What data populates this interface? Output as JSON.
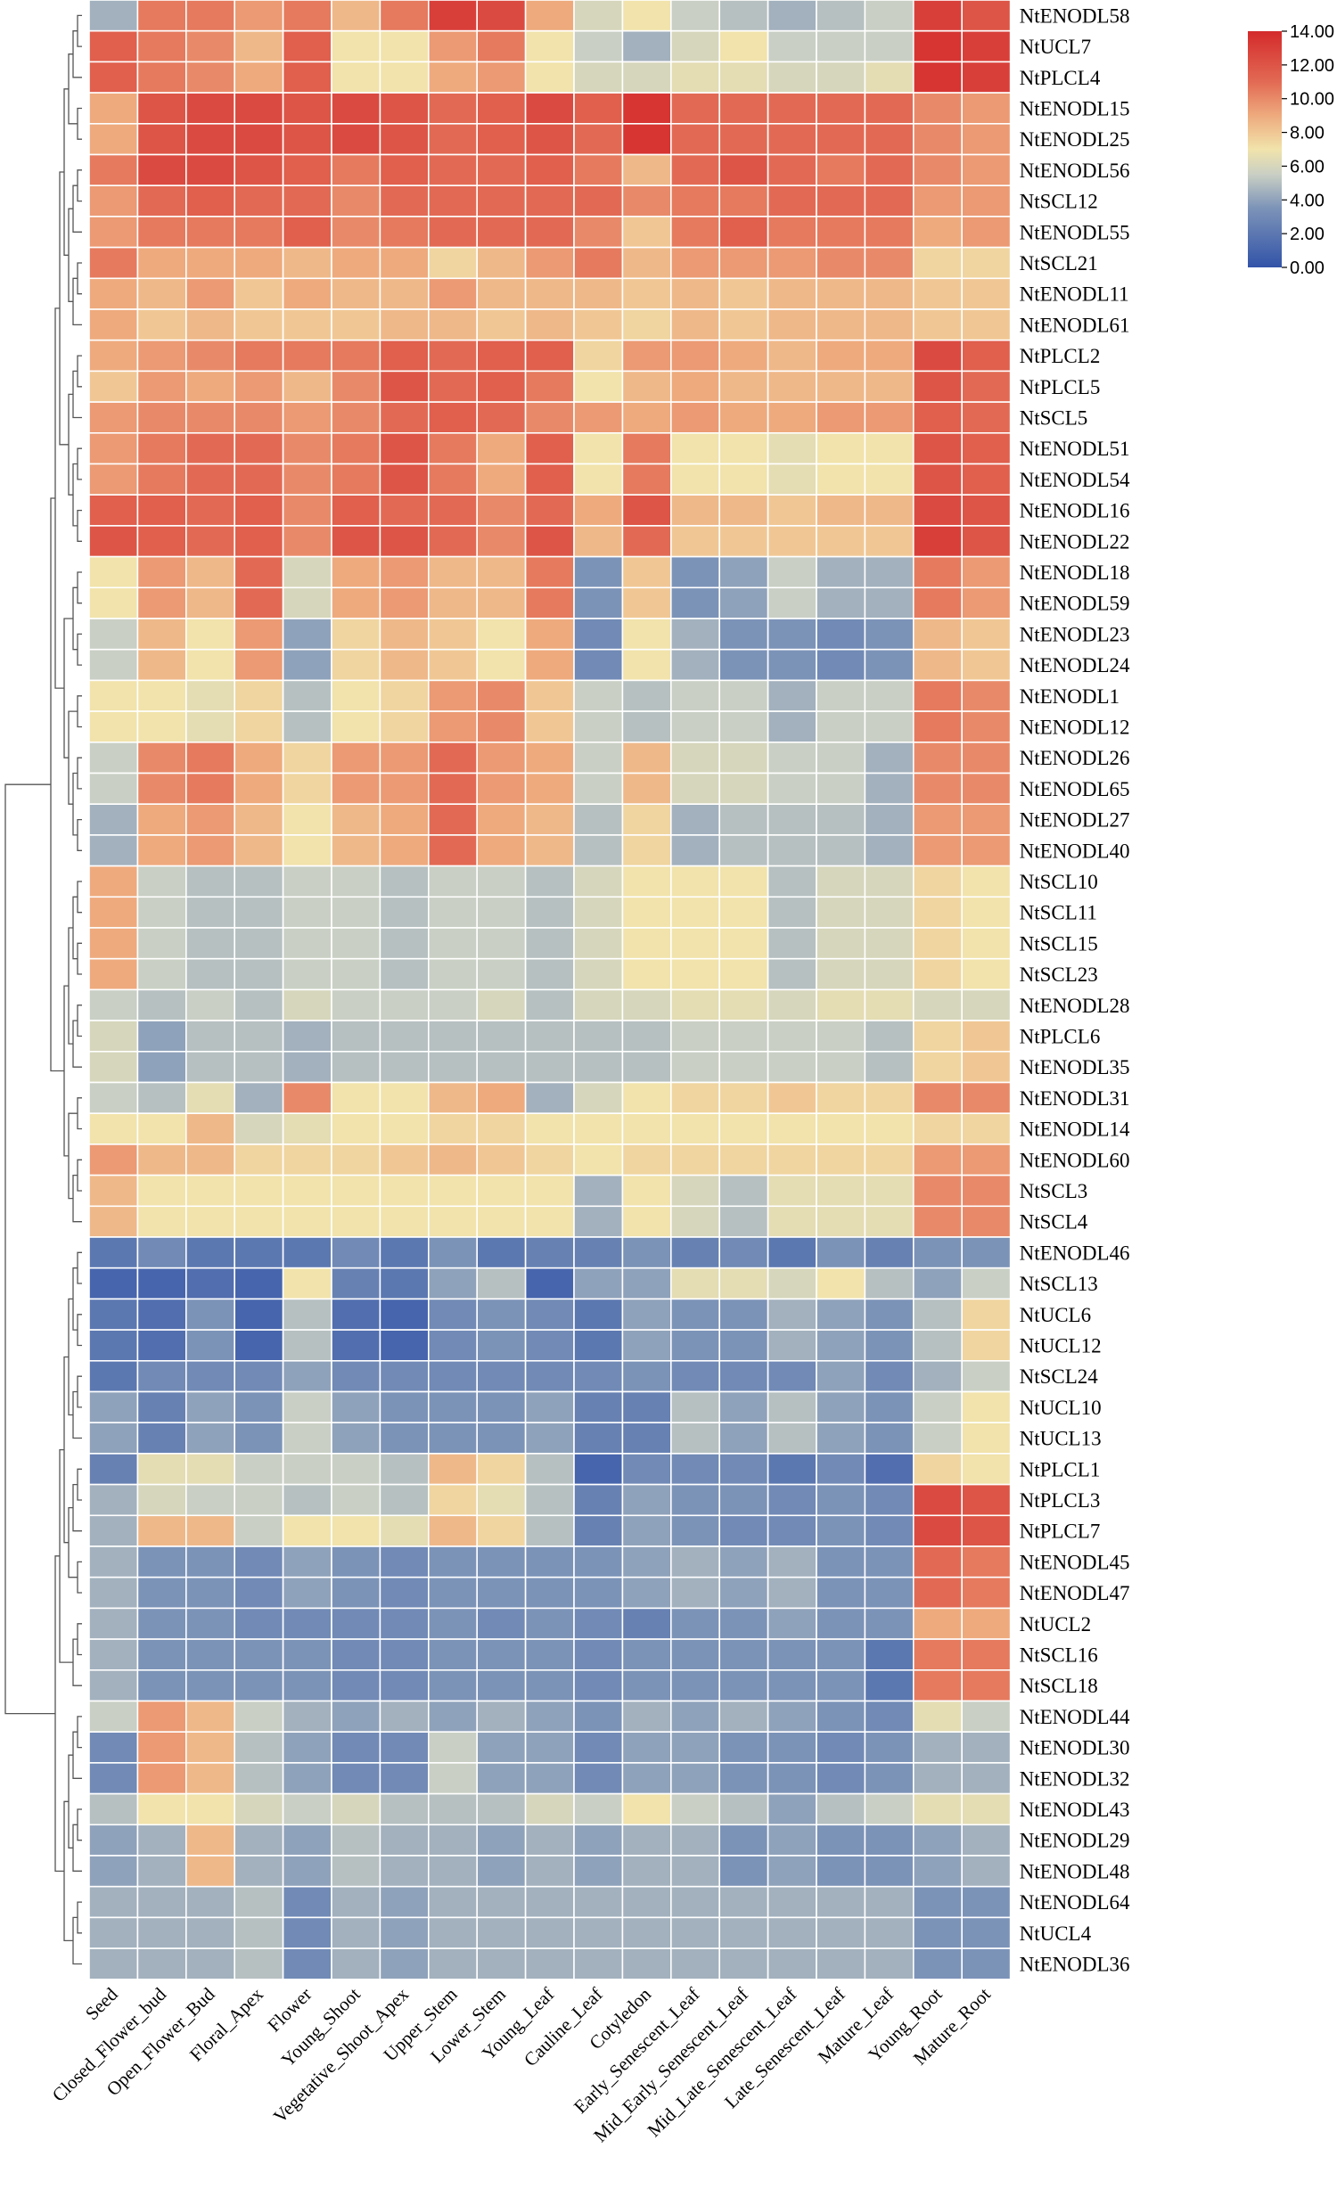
{
  "chart_data": {
    "type": "heatmap",
    "title": "",
    "xlabel": "",
    "ylabel": "",
    "columns": [
      "Seed",
      "Closed_Flower_bud",
      "Open_Flower_Bud",
      "Floral_Apex",
      "Flower",
      "Young_Shoot",
      "Vegetative_Shoot_Apex",
      "Upper_Stem",
      "Lower_Stem",
      "Young_Leaf",
      "Cauline_Leaf",
      "Cotyledon",
      "Early_Senescent_Leaf",
      "Mid_Early_Senescent_Leaf",
      "Mid_Late_Senescent_Leaf",
      "Late_Senescent_Leaf",
      "Mature_Leaf",
      "Young_Root",
      "Mature_Root"
    ],
    "rows": [
      "NtENODL58",
      "NtUCL7",
      "NtPLCL4",
      "NtENODL15",
      "NtENODL25",
      "NtENODL56",
      "NtSCL12",
      "NtENODL55",
      "NtSCL21",
      "NtENODL11",
      "NtENODL61",
      "NtPLCL2",
      "NtPLCL5",
      "NtSCL5",
      "NtENODL51",
      "NtENODL54",
      "NtENODL16",
      "NtENODL22",
      "NtENODL18",
      "NtENODL59",
      "NtENODL23",
      "NtENODL24",
      "NtENODL1",
      "NtENODL12",
      "NtENODL26",
      "NtENODL65",
      "NtENODL27",
      "NtENODL40",
      "NtSCL10",
      "NtSCL11",
      "NtSCL15",
      "NtSCL23",
      "NtENODL28",
      "NtPLCL6",
      "NtENODL35",
      "NtENODL31",
      "NtENODL14",
      "NtENODL60",
      "NtSCL3",
      "NtSCL4",
      "NtENODL46",
      "NtSCL13",
      "NtUCL6",
      "NtUCL12",
      "NtSCL24",
      "NtUCL10",
      "NtUCL13",
      "NtPLCL1",
      "NtPLCL3",
      "NtPLCL7",
      "NtENODL45",
      "NtENODL47",
      "NtUCL2",
      "NtSCL16",
      "NtSCL18",
      "NtENODL44",
      "NtENODL30",
      "NtENODL32",
      "NtENODL43",
      "NtENODL29",
      "NtENODL48",
      "NtENODL64",
      "NtUCL4",
      "NtENODL36"
    ],
    "values": [
      [
        4.5,
        10.5,
        10.5,
        9.5,
        10.5,
        8.5,
        10.5,
        13,
        12.5,
        9,
        6,
        7,
        5.5,
        5,
        4.5,
        5,
        5.5,
        13,
        12
      ],
      [
        11.5,
        10.5,
        10,
        8.5,
        11.5,
        7,
        7,
        9.5,
        10.5,
        7,
        5.5,
        4.5,
        6,
        7,
        5.5,
        5.5,
        5.5,
        13.5,
        13
      ],
      [
        11.5,
        10.5,
        10,
        9,
        11.5,
        7,
        7,
        9,
        9.5,
        7,
        6,
        6,
        6.5,
        6.5,
        6,
        6,
        6.5,
        13.5,
        13
      ],
      [
        9,
        12,
        12.5,
        12.5,
        12,
        12.5,
        12,
        11,
        11.5,
        12.5,
        11.5,
        13.5,
        11,
        11,
        11,
        11,
        11,
        10,
        9.5
      ],
      [
        9,
        12,
        12.5,
        12.5,
        12,
        12.5,
        12,
        11,
        11.5,
        12,
        11,
        13.5,
        11,
        11,
        11,
        11,
        11,
        10,
        9.5
      ],
      [
        10.5,
        12.5,
        12.5,
        12,
        11.5,
        10.5,
        11.5,
        11,
        11,
        11.5,
        10.5,
        8.5,
        11,
        12,
        11,
        10.5,
        11,
        10,
        9.5
      ],
      [
        9.5,
        11,
        11.5,
        11,
        11,
        10,
        11,
        11,
        11,
        11,
        11,
        10,
        10.5,
        10.5,
        11,
        11,
        11,
        9.5,
        9.5
      ],
      [
        9.5,
        10.5,
        10.5,
        10.5,
        11.5,
        10,
        10.5,
        11,
        11,
        11,
        10,
        8,
        10.5,
        11.5,
        10.5,
        10.5,
        10.5,
        9,
        9.5
      ],
      [
        10.5,
        9,
        9,
        9,
        8.5,
        9,
        9,
        7.5,
        8.5,
        9.5,
        10.5,
        8.5,
        9.5,
        9.5,
        9.5,
        10,
        10,
        7.5,
        7.5
      ],
      [
        9,
        8.5,
        9.5,
        8,
        9,
        8.5,
        8.5,
        9.5,
        8.5,
        8.5,
        8.5,
        8,
        8.5,
        8,
        8.5,
        8.5,
        8.5,
        8,
        8
      ],
      [
        9,
        8,
        8.5,
        8,
        8,
        8,
        8.5,
        8.5,
        8,
        8.5,
        8,
        7.5,
        8.5,
        8,
        8.5,
        8.5,
        8.5,
        8,
        8
      ],
      [
        9,
        9.5,
        10,
        10.5,
        10.5,
        10.5,
        11.5,
        11,
        11.5,
        11.5,
        7.5,
        9.5,
        9.5,
        9,
        8.5,
        9,
        9,
        12.5,
        11.5
      ],
      [
        8,
        9.5,
        9,
        9.5,
        8.5,
        10,
        12,
        11,
        11.5,
        10.5,
        7,
        8.5,
        9,
        8.5,
        8.5,
        8.5,
        8.5,
        12,
        11
      ],
      [
        9.5,
        10,
        10,
        10,
        9.5,
        10,
        11,
        11.5,
        11,
        10,
        9.5,
        9,
        9.5,
        9,
        9,
        9.5,
        9.5,
        11.5,
        11
      ],
      [
        9.5,
        10.5,
        11,
        11,
        10,
        10.5,
        12,
        10.5,
        9,
        11.5,
        7,
        10.5,
        7,
        7,
        6.5,
        7,
        7,
        12,
        11.5
      ],
      [
        9.5,
        10.5,
        11,
        11,
        10,
        10.5,
        12,
        10.5,
        9,
        11.5,
        7,
        10.5,
        7,
        7,
        6.5,
        7,
        7,
        12,
        11.5
      ],
      [
        11.5,
        11.5,
        11,
        11.5,
        10,
        11.5,
        11,
        11,
        10,
        11,
        9,
        12,
        8.5,
        8.5,
        8,
        8.5,
        8.5,
        12.5,
        12
      ],
      [
        12,
        11.5,
        11,
        11.5,
        10,
        12,
        12,
        11,
        10,
        12,
        8.5,
        11,
        8,
        8,
        8,
        8,
        8,
        13,
        12
      ],
      [
        7,
        9.5,
        8.5,
        11,
        6,
        9,
        9.5,
        8.5,
        8.5,
        10.5,
        3.5,
        8,
        3.5,
        4,
        5.5,
        4.5,
        4.5,
        10.5,
        9.5
      ],
      [
        7,
        9.5,
        8.5,
        11,
        6,
        9,
        9.5,
        8.5,
        8.5,
        10.5,
        3.5,
        8,
        3.5,
        4,
        5.5,
        4.5,
        4.5,
        10.5,
        9.5
      ],
      [
        5.5,
        8.5,
        7,
        9.5,
        4,
        7.5,
        8.5,
        8,
        7,
        9,
        3,
        7,
        4.5,
        3.5,
        3.5,
        3,
        3.5,
        8.5,
        8
      ],
      [
        5.5,
        8.5,
        7,
        9.5,
        4,
        7.5,
        8.5,
        8,
        7,
        9,
        3,
        7,
        4.5,
        3.5,
        3.5,
        3,
        3.5,
        8.5,
        8
      ],
      [
        7,
        7,
        6.5,
        7.5,
        5,
        7,
        7.5,
        9.5,
        10,
        8,
        5.5,
        5,
        5.5,
        5.5,
        4.5,
        5.5,
        5.5,
        10.5,
        10
      ],
      [
        7,
        7,
        6.5,
        7.5,
        5,
        7,
        7.5,
        9.5,
        10,
        8,
        5.5,
        5,
        5.5,
        5.5,
        4.5,
        5.5,
        5.5,
        10.5,
        10
      ],
      [
        5.5,
        10,
        10.5,
        9,
        7.5,
        9.5,
        9.5,
        11,
        9.5,
        9,
        5.5,
        8.5,
        6,
        6,
        5.5,
        5.5,
        4.5,
        10,
        10
      ],
      [
        5.5,
        10,
        10.5,
        9,
        7.5,
        9.5,
        9.5,
        11,
        9.5,
        9,
        5.5,
        8.5,
        6,
        6,
        5.5,
        5.5,
        4.5,
        10,
        10
      ],
      [
        4.5,
        9,
        9.5,
        8.5,
        7,
        8.5,
        9,
        11,
        9,
        8.5,
        5,
        7.5,
        4.5,
        5,
        5,
        5,
        4.5,
        9.5,
        9.5
      ],
      [
        4.5,
        9,
        9.5,
        8.5,
        7,
        8.5,
        9,
        11,
        9,
        8.5,
        5,
        7.5,
        4.5,
        5,
        5,
        5,
        4.5,
        9.5,
        9.5
      ],
      [
        9,
        5.5,
        5,
        5,
        5.5,
        5.5,
        5,
        5.5,
        5.5,
        5,
        6,
        7,
        7,
        7,
        5,
        6,
        6,
        7.5,
        7
      ],
      [
        9,
        5.5,
        5,
        5,
        5.5,
        5.5,
        5,
        5.5,
        5.5,
        5,
        6,
        7,
        7,
        7,
        5,
        6,
        6,
        7.5,
        7
      ],
      [
        9,
        5.5,
        5,
        5,
        5.5,
        5.5,
        5,
        5.5,
        5.5,
        5,
        6,
        7,
        7,
        7,
        5,
        6,
        6,
        7.5,
        7
      ],
      [
        9,
        5.5,
        5,
        5,
        5.5,
        5.5,
        5,
        5.5,
        5.5,
        5,
        6,
        7,
        7,
        7,
        5,
        6,
        6,
        7.5,
        7
      ],
      [
        5.5,
        5,
        5.5,
        5,
        6,
        5.5,
        5.5,
        5.5,
        6,
        5,
        6,
        6,
        6.5,
        6.5,
        6,
        6.5,
        6.5,
        6,
        6
      ],
      [
        6,
        4,
        5,
        5,
        4.5,
        5,
        5,
        5,
        5,
        5,
        5,
        5,
        5.5,
        5.5,
        5.5,
        5.5,
        5,
        7.5,
        8
      ],
      [
        6,
        4,
        5,
        5,
        4.5,
        5,
        5,
        5,
        5,
        5,
        5,
        5,
        5.5,
        5.5,
        5.5,
        5.5,
        5,
        7.5,
        8
      ],
      [
        5.5,
        5,
        6.5,
        4.5,
        10,
        7,
        7,
        8.5,
        9,
        4.5,
        6,
        7,
        7.5,
        7.5,
        8,
        7.5,
        7.5,
        10,
        10
      ],
      [
        7,
        7,
        8.5,
        6,
        6.5,
        7,
        7,
        7.5,
        7.5,
        7,
        7,
        7,
        7,
        7,
        7,
        7,
        7,
        7.5,
        7.5
      ],
      [
        9.5,
        8.5,
        8.5,
        7.5,
        7.5,
        7.5,
        8,
        8.5,
        8,
        7.5,
        7,
        7.5,
        7.5,
        7.5,
        7.5,
        7.5,
        7.5,
        9.5,
        9.5
      ],
      [
        8.5,
        7,
        7,
        7,
        7,
        7,
        7,
        7,
        7,
        7,
        4.5,
        7,
        6,
        5,
        6.5,
        6.5,
        6.5,
        10,
        10
      ],
      [
        8.5,
        7,
        7,
        7,
        7,
        7,
        7,
        7,
        7,
        7,
        4.5,
        7,
        6,
        5,
        6.5,
        6.5,
        6.5,
        10,
        10
      ],
      [
        2,
        3,
        2,
        2,
        2,
        3,
        2,
        3.5,
        2,
        2.5,
        2.5,
        3.5,
        2.5,
        3,
        2,
        3.5,
        2.5,
        3.5,
        3.5
      ],
      [
        1,
        1,
        1.5,
        1,
        7,
        2.5,
        2,
        4,
        5,
        1,
        4,
        4,
        6.5,
        6.5,
        6,
        7,
        5,
        4,
        5.5
      ],
      [
        2,
        1.5,
        3.5,
        1,
        5,
        1.5,
        1,
        3,
        3.5,
        3,
        2,
        4,
        3.5,
        3.5,
        4.5,
        4,
        3.5,
        5,
        7.5
      ],
      [
        2,
        1.5,
        3.5,
        1,
        5,
        1.5,
        1,
        3,
        3.5,
        3,
        2,
        4,
        3.5,
        3.5,
        4.5,
        4,
        3.5,
        5,
        7.5
      ],
      [
        2,
        3,
        3,
        3,
        4,
        3,
        3,
        3,
        3,
        3,
        3,
        3.5,
        3,
        3,
        3,
        4,
        3,
        4.5,
        5.5
      ],
      [
        4,
        2.5,
        4,
        3.5,
        5.5,
        4,
        3.5,
        3.5,
        3.5,
        4,
        2.5,
        2.5,
        5,
        4,
        5,
        4,
        3.5,
        5.5,
        7
      ],
      [
        4,
        2.5,
        4,
        3.5,
        5.5,
        4,
        3.5,
        3.5,
        3.5,
        4,
        2.5,
        2.5,
        5,
        4,
        5,
        4,
        3.5,
        5.5,
        7
      ],
      [
        2.5,
        6.5,
        6.5,
        5.5,
        5.5,
        5.5,
        5,
        8.5,
        7.5,
        5,
        1,
        3,
        3,
        3,
        2,
        3,
        1.5,
        7.5,
        7
      ],
      [
        4.5,
        6,
        5.5,
        5.5,
        5,
        5.5,
        5,
        7.5,
        6.5,
        5,
        2.5,
        4,
        3.5,
        3.5,
        3,
        3.5,
        3,
        12.5,
        12
      ],
      [
        4.5,
        8.5,
        8.5,
        5.5,
        7,
        7,
        6.5,
        8.5,
        7.5,
        5,
        2.5,
        4,
        3.5,
        3,
        3,
        3.5,
        3,
        12.5,
        12
      ],
      [
        4.5,
        3.5,
        3.5,
        3,
        4,
        3.5,
        3,
        3.5,
        3.5,
        3.5,
        3.5,
        4,
        4.5,
        4,
        4.5,
        3.5,
        3.5,
        11,
        10.5
      ],
      [
        4.5,
        3.5,
        3.5,
        3,
        4,
        3.5,
        3,
        3.5,
        3.5,
        3.5,
        3.5,
        4,
        4.5,
        4,
        4.5,
        3.5,
        3.5,
        11,
        10.5
      ],
      [
        4.5,
        3.5,
        3.5,
        3,
        3,
        3,
        3,
        3.5,
        3,
        3.5,
        3,
        2.5,
        3.5,
        3.5,
        4,
        3.5,
        3.5,
        9,
        9
      ],
      [
        4.5,
        3.5,
        3.5,
        3.5,
        3.5,
        3,
        3,
        3.5,
        3.5,
        3.5,
        3,
        3.5,
        3.5,
        3.5,
        3.5,
        3.5,
        2,
        10.5,
        10.5
      ],
      [
        4.5,
        3.5,
        3.5,
        3.5,
        3.5,
        3,
        3,
        3.5,
        3.5,
        3.5,
        3,
        3.5,
        3.5,
        3.5,
        3.5,
        3.5,
        2,
        10.5,
        10.5
      ],
      [
        5.5,
        9.5,
        8.5,
        5.5,
        4.5,
        4,
        4.5,
        4,
        4.5,
        4,
        3.5,
        4.5,
        4,
        4.5,
        4,
        3.5,
        3,
        6.5,
        5.5
      ],
      [
        3,
        9.5,
        8.5,
        5,
        4,
        3,
        3,
        5.5,
        4,
        4,
        3,
        4,
        4,
        3.5,
        3.5,
        3,
        3.5,
        4.5,
        4.5
      ],
      [
        3,
        9.5,
        8.5,
        5,
        4,
        3,
        3,
        5.5,
        4,
        4,
        3,
        4,
        4,
        3.5,
        3.5,
        3,
        3.5,
        4.5,
        4.5
      ],
      [
        5,
        7,
        7,
        6,
        5.5,
        6,
        5,
        5,
        5,
        6,
        5.5,
        7,
        5.5,
        5,
        4,
        5,
        5.5,
        6.5,
        6.5
      ],
      [
        4,
        4.5,
        8.5,
        4.5,
        4,
        5,
        4.5,
        4.5,
        4,
        4.5,
        4,
        4.5,
        4.5,
        3.5,
        4,
        3.5,
        3.5,
        4,
        4.5
      ],
      [
        4,
        4.5,
        8.5,
        4.5,
        4,
        5,
        4.5,
        4.5,
        4,
        4.5,
        4,
        4.5,
        4.5,
        3.5,
        4,
        3.5,
        3.5,
        4,
        4.5
      ],
      [
        4.5,
        4.5,
        4.5,
        5,
        3,
        4.5,
        4,
        4.5,
        4.5,
        4.5,
        4.5,
        4.5,
        4.5,
        4.5,
        4.5,
        4.5,
        4.5,
        3.5,
        3.5
      ],
      [
        4.5,
        4.5,
        4.5,
        5,
        3,
        4.5,
        4,
        4.5,
        4.5,
        4.5,
        4.5,
        4.5,
        4.5,
        4.5,
        4.5,
        4.5,
        4.5,
        3.5,
        3.5
      ],
      [
        4.5,
        4.5,
        4.5,
        5,
        3,
        4.5,
        4,
        4.5,
        4.5,
        4.5,
        4.5,
        4.5,
        4.5,
        4.5,
        4.5,
        4.5,
        4.5,
        3.5,
        3.5
      ]
    ],
    "colorscale": {
      "min": 0,
      "max": 14,
      "stops": [
        {
          "value": 0,
          "color": "#3253a8"
        },
        {
          "value": 3.5,
          "color": "#7c93b8"
        },
        {
          "value": 5.5,
          "color": "#c9cfc4"
        },
        {
          "value": 7,
          "color": "#f1e3ab"
        },
        {
          "value": 9,
          "color": "#eeaa7d"
        },
        {
          "value": 11,
          "color": "#e26a54"
        },
        {
          "value": 14,
          "color": "#d42a2b"
        }
      ]
    },
    "legend": {
      "ticks": [
        "14.00",
        "12.00",
        "10.00",
        "8.00",
        "6.00",
        "4.00",
        "2.00",
        "0.00"
      ],
      "tick_values": [
        14,
        12,
        10,
        8,
        6,
        4,
        2,
        0
      ],
      "placement": "top-right"
    },
    "dendrogram": "row clustering tree shown on left; no column clustering",
    "grid": "white cell borders"
  }
}
